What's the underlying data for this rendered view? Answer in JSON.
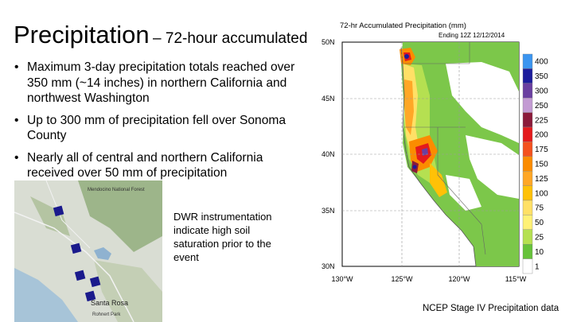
{
  "slide": {
    "title_main": "Precipitation",
    "title_sub": "– 72-hour accumulated",
    "bullets": [
      "Maximum 3-day precipitation totals reached over 350 mm (~14 inches) in northern California and northwest Washington",
      "Up to 300 mm of precipitation fell over Sonoma County",
      "Nearly all of central and northern California received over 50 mm of precipitation"
    ],
    "note": "DWR instrumentation indicate high soil saturation prior to the event",
    "source": "NCEP Stage IV Precipitation data"
  },
  "inset_map": {
    "labels": [
      "Mendocino National Forest",
      "Santa Rosa",
      "Rohnert Park"
    ],
    "marker_color": "#1a1a8c"
  },
  "precip_map": {
    "title": "72-hr Accumulated Precipitation (mm)",
    "subtitle": "Ending 12Z 12/12/2014",
    "lat_labels": [
      "50N",
      "45N",
      "40N",
      "35N",
      "30N"
    ],
    "lon_labels": [
      "130°W",
      "125°W",
      "120°W",
      "115°W"
    ],
    "legend": [
      {
        "label": "400",
        "color": "#3b95f0"
      },
      {
        "label": "350",
        "color": "#1c1c9c"
      },
      {
        "label": "300",
        "color": "#6a3fa0"
      },
      {
        "label": "250",
        "color": "#c39bd3"
      },
      {
        "label": "225",
        "color": "#8b1a3a"
      },
      {
        "label": "200",
        "color": "#e41a1c"
      },
      {
        "label": "175",
        "color": "#f4511e"
      },
      {
        "label": "150",
        "color": "#fb8c00"
      },
      {
        "label": "125",
        "color": "#ffa726"
      },
      {
        "label": "100",
        "color": "#ffc107"
      },
      {
        "label": "75",
        "color": "#ffe066"
      },
      {
        "label": "50",
        "color": "#fff176"
      },
      {
        "label": "25",
        "color": "#b5e051"
      },
      {
        "label": "10",
        "color": "#66c23a"
      },
      {
        "label": "1",
        "color": "#ffffff"
      }
    ]
  }
}
